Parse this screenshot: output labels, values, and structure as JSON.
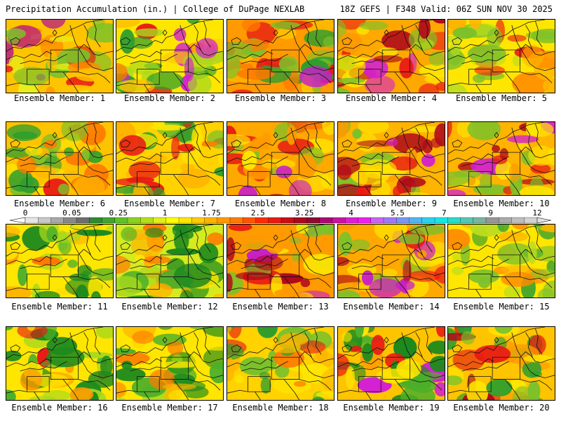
{
  "header": {
    "title_left": "Precipitation Accumulation (in.) | College of DuPage NEXLAB",
    "title_right": "18Z GEFS | F348 Valid: 06Z SUN NOV 30 2025"
  },
  "panels": [
    {
      "label": "Ensemble Member: 1",
      "palette": [
        "#7cc12a",
        "#e8ef19",
        "#ffc400",
        "#ff8c00",
        "#e81a14",
        "#b4148c"
      ],
      "base": "#ffc400"
    },
    {
      "label": "Ensemble Member: 2",
      "palette": [
        "#2e9e2e",
        "#a8d81e",
        "#ffc400",
        "#ff7a00",
        "#e81a14",
        "#d31ed3"
      ],
      "base": "#ffe600"
    },
    {
      "label": "Ensemble Member: 3",
      "palette": [
        "#2e9e2e",
        "#7cc12a",
        "#ffc400",
        "#ff7a00",
        "#e81a14",
        "#c81ec8"
      ],
      "base": "#ff9a00"
    },
    {
      "label": "Ensemble Member: 4",
      "palette": [
        "#7cc12a",
        "#ffe600",
        "#ff9a00",
        "#e81a14",
        "#b00a1a",
        "#d31ed3"
      ],
      "base": "#ffa800"
    },
    {
      "label": "Ensemble Member: 5",
      "palette": [
        "#7cc12a",
        "#bcdd1e",
        "#ffe600",
        "#ffb400",
        "#ff8c00",
        "#e81a14"
      ],
      "base": "#ffe600"
    },
    {
      "label": "Ensemble Member: 6",
      "palette": [
        "#2e9e2e",
        "#7cc12a",
        "#ffe600",
        "#ffb400",
        "#ff7a00",
        "#e81a14"
      ],
      "base": "#ffc400"
    },
    {
      "label": "Ensemble Member: 7",
      "palette": [
        "#2e9e2e",
        "#7cc12a",
        "#ffe600",
        "#ffb400",
        "#ff7a00",
        "#e81a14"
      ],
      "base": "#ffd200"
    },
    {
      "label": "Ensemble Member: 8",
      "palette": [
        "#7cc12a",
        "#ffe600",
        "#ff9a00",
        "#e81a14",
        "#b00a1a",
        "#c81ec8"
      ],
      "base": "#ffa800"
    },
    {
      "label": "Ensemble Member: 9",
      "palette": [
        "#7cc12a",
        "#ffe600",
        "#ff9a00",
        "#e81a14",
        "#b00a1a",
        "#d31ed3"
      ],
      "base": "#ffb400"
    },
    {
      "label": "Ensemble Member: 10",
      "palette": [
        "#7cc12a",
        "#ffe600",
        "#ff9a00",
        "#e81a14",
        "#b00a1a",
        "#d31ed3"
      ],
      "base": "#ffb400"
    },
    {
      "label": "Ensemble Member: 11",
      "palette": [
        "#1e8a1e",
        "#4caf2a",
        "#a8d81e",
        "#ffe600",
        "#ffb400",
        "#ff7a00"
      ],
      "base": "#ffe600"
    },
    {
      "label": "Ensemble Member: 12",
      "palette": [
        "#1e8a1e",
        "#4caf2a",
        "#a8d81e",
        "#ffe600",
        "#ffb400",
        "#ff7a00"
      ],
      "base": "#d6ea1e"
    },
    {
      "label": "Ensemble Member: 13",
      "palette": [
        "#7cc12a",
        "#ffe600",
        "#ff9a00",
        "#e81a14",
        "#b00a1a",
        "#c81ec8"
      ],
      "base": "#ff9a00"
    },
    {
      "label": "Ensemble Member: 14",
      "palette": [
        "#7cc12a",
        "#ffe600",
        "#ff9a00",
        "#e81a14",
        "#b00a1a",
        "#c81ec8"
      ],
      "base": "#ffa800"
    },
    {
      "label": "Ensemble Member: 15",
      "palette": [
        "#2e9e2e",
        "#7cc12a",
        "#bcdd1e",
        "#ffe600",
        "#ffb400",
        "#ff8c00"
      ],
      "base": "#ffe600"
    },
    {
      "label": "Ensemble Member: 16",
      "palette": [
        "#1e8a1e",
        "#4caf2a",
        "#a8d81e",
        "#ffe600",
        "#ff9a00",
        "#e81a14"
      ],
      "base": "#ffe600"
    },
    {
      "label": "Ensemble Member: 17",
      "palette": [
        "#1e8a1e",
        "#4caf2a",
        "#a8d81e",
        "#ffe600",
        "#ffb400",
        "#ff7a00"
      ],
      "base": "#ffe600"
    },
    {
      "label": "Ensemble Member: 18",
      "palette": [
        "#2e9e2e",
        "#7cc12a",
        "#ffe600",
        "#ffb400",
        "#ff7a00",
        "#e81a14"
      ],
      "base": "#ffd200"
    },
    {
      "label": "Ensemble Member: 19",
      "palette": [
        "#1e8a1e",
        "#4caf2a",
        "#ffe600",
        "#ff9a00",
        "#e81a14",
        "#d31ed3"
      ],
      "base": "#ffc400"
    },
    {
      "label": "Ensemble Member: 20",
      "palette": [
        "#2e9e2e",
        "#7cc12a",
        "#ffe600",
        "#ff9a00",
        "#e81a14",
        "#b00a1a"
      ],
      "base": "#ffc400"
    }
  ],
  "colorbar": {
    "labels": [
      "0",
      "0.05",
      "0.25",
      "1",
      "1.75",
      "2.5",
      "3.25",
      "4",
      "5.5",
      "7",
      "9",
      "12"
    ],
    "colors": [
      "#e6e6e6",
      "#c8c8c8",
      "#a8a8a8",
      "#888888",
      "#6e6e6e",
      "#2e8b2e",
      "#3fa52e",
      "#62c02a",
      "#8ad21e",
      "#b4e01a",
      "#e0ef19",
      "#ffff00",
      "#ffe600",
      "#ffcc00",
      "#ffb400",
      "#ff9a00",
      "#ff7a00",
      "#ff5500",
      "#ff2a00",
      "#e81a14",
      "#c80f14",
      "#a80a1e",
      "#8c0a2e",
      "#aa0a6e",
      "#c814a0",
      "#dc1ed2",
      "#f01ef0",
      "#c864f0",
      "#a078f0",
      "#7896f0",
      "#50b4f0",
      "#28d2f0",
      "#14e6e6",
      "#28dcc8",
      "#50c8b4",
      "#78b4a0",
      "#969696",
      "#aaaaaa",
      "#bebebe",
      "#d2d2d2"
    ]
  }
}
